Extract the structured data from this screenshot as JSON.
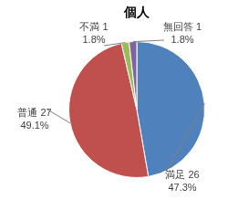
{
  "chart_data": {
    "type": "pie",
    "title": "個人",
    "categories": [
      "満足",
      "普通",
      "不満",
      "無回答"
    ],
    "values": [
      26,
      27,
      1,
      1
    ],
    "percent_labels": [
      "47.3%",
      "49.1%",
      "1.8%",
      "1.8%"
    ],
    "colors": [
      "#4f81bd",
      "#c0504d",
      "#9bbb59",
      "#8064a2"
    ],
    "data_labels": true
  }
}
